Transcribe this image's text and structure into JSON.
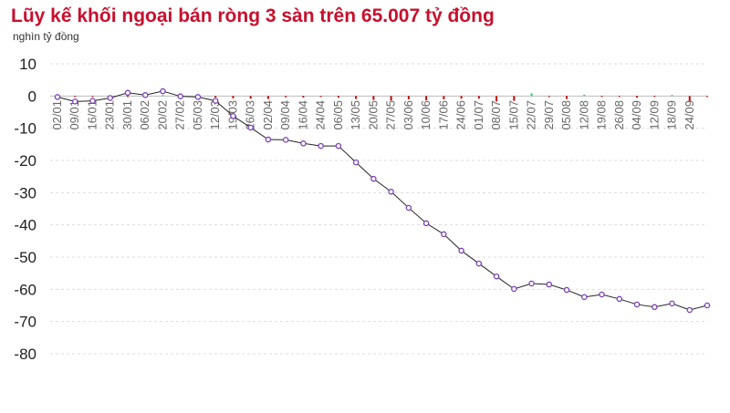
{
  "chart_data": {
    "type": "line",
    "title": "Lũy kế khối ngoại bán ròng 3 sàn trên 65.007 tỷ đồng",
    "ylabel": "nghìn tỷ đồng",
    "xlabel": "",
    "ylim": [
      -80,
      10
    ],
    "yticks": [
      10,
      0,
      -10,
      -20,
      -30,
      -40,
      -50,
      -60,
      -70,
      -80
    ],
    "grid": true,
    "colors": {
      "line": "#222222",
      "marker": "#7b3fb5",
      "buy": "#2ecc71",
      "sell": "#cc0000",
      "title": "#c8102e"
    },
    "categories": [
      "02/01",
      "09/01",
      "16/01",
      "23/01",
      "30/01",
      "06/02",
      "20/02",
      "27/02",
      "05/03",
      "12/03",
      "19/03",
      "26/03",
      "02/04",
      "09/04",
      "16/04",
      "24/04",
      "06/05",
      "13/05",
      "20/05",
      "27/05",
      "03/06",
      "10/06",
      "17/06",
      "24/06",
      "01/07",
      "08/07",
      "15/07",
      "22/07",
      "29/07",
      "05/08",
      "12/08",
      "19/08",
      "26/08",
      "04/09",
      "12/09",
      "18/09",
      "24/09",
      ""
    ],
    "series": [
      {
        "values": [
          -0.3,
          -1.7,
          -1.5,
          -0.6,
          1.0,
          0.3,
          1.5,
          -0.1,
          -0.3,
          -1.5,
          -6.2,
          -9.8,
          -13.5,
          -13.6,
          -14.7,
          -15.5,
          -15.5,
          -20.6,
          -25.7,
          -29.7,
          -34.7,
          -39.5,
          -42.9,
          -48.0,
          -52.0,
          -56.0,
          -59.9,
          -58.2,
          -58.5,
          -60.2,
          -62.4,
          -61.6,
          -63.0,
          -64.7,
          -65.5,
          -64.4,
          -66.4,
          -65.0
        ]
      },
      {
        "type": "bar",
        "values": [
          -0.2,
          -0.3,
          -0.1,
          0.2,
          -0.3,
          -0.3,
          0.3,
          -0.4,
          -0.2,
          -0.5,
          -0.7,
          -0.8,
          -0.9,
          -0.4,
          -0.5,
          -0.3,
          -0.5,
          -0.9,
          -1.2,
          -1.4,
          -1.0,
          -1.3,
          -1.0,
          -0.8,
          -0.8,
          -1.7,
          -1.5,
          0.8,
          -0.3,
          -0.9,
          0.4,
          -0.3,
          -0.2,
          -0.5,
          -0.2,
          0.3,
          -1.7,
          -0.3
        ]
      }
    ]
  }
}
